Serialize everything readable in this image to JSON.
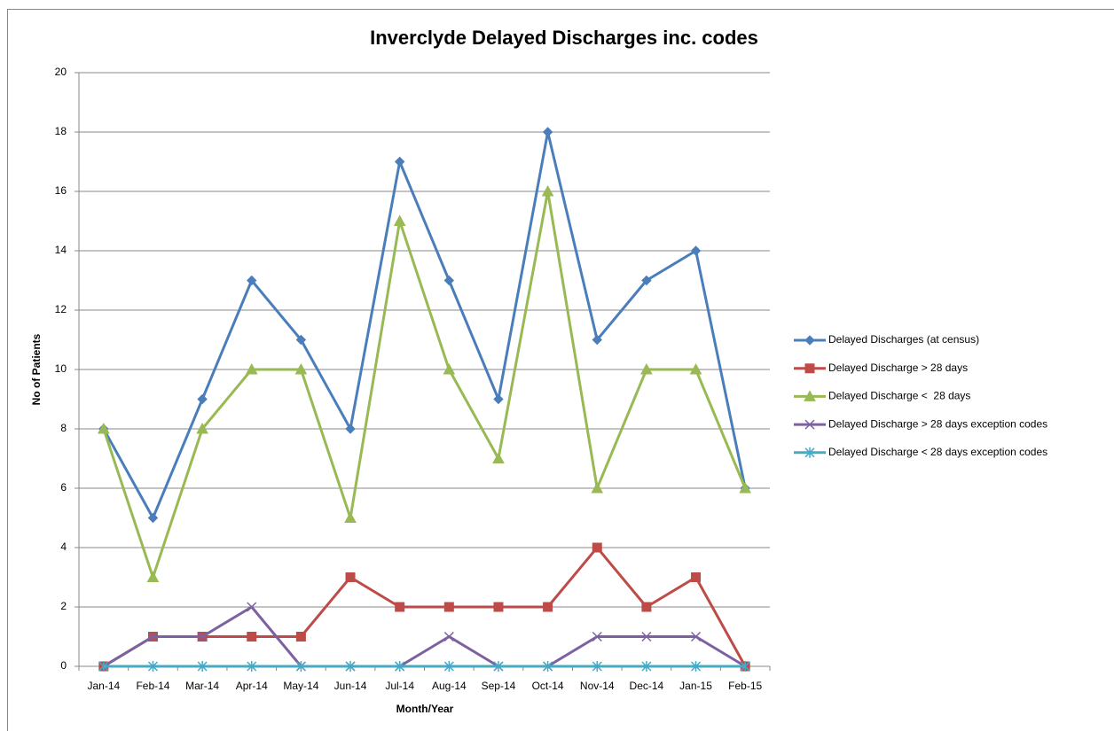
{
  "chart_data": {
    "type": "line",
    "title": "Inverclyde Delayed Discharges inc. codes",
    "x_label": "Month/Year",
    "y_label": "No of Patients",
    "categories": [
      "Jan-14",
      "Feb-14",
      "Mar-14",
      "Apr-14",
      "May-14",
      "Jun-14",
      "Jul-14",
      "Aug-14",
      "Sep-14",
      "Oct-14",
      "Nov-14",
      "Dec-14",
      "Jan-15",
      "Feb-15"
    ],
    "series": [
      {
        "name": "Delayed Discharges (at census)",
        "color": "#4a7ebb",
        "marker": "diamond",
        "values": [
          8,
          5,
          9,
          13,
          11,
          8,
          17,
          13,
          9,
          18,
          11,
          13,
          14,
          6
        ]
      },
      {
        "name": "Delayed Discharge > 28 days",
        "color": "#be4b48",
        "marker": "square",
        "values": [
          0,
          1,
          1,
          1,
          1,
          3,
          2,
          2,
          2,
          2,
          4,
          2,
          3,
          0
        ]
      },
      {
        "name": "Delayed Discharge <  28 days",
        "color": "#98b954",
        "marker": "triangle",
        "values": [
          8,
          3,
          8,
          10,
          10,
          5,
          15,
          10,
          7,
          16,
          6,
          10,
          10,
          6
        ]
      },
      {
        "name": "Delayed Discharge > 28 days exception codes",
        "color": "#7d60a0",
        "marker": "x",
        "values": [
          0,
          1,
          1,
          2,
          0,
          0,
          0,
          1,
          0,
          0,
          1,
          1,
          1,
          0
        ]
      },
      {
        "name": "Delayed Discharge < 28 days exception codes",
        "color": "#46aac5",
        "marker": "star",
        "values": [
          0,
          0,
          0,
          0,
          0,
          0,
          0,
          0,
          0,
          0,
          0,
          0,
          0,
          0
        ]
      }
    ],
    "ylim": [
      0,
      20
    ],
    "yticks": [
      0,
      2,
      4,
      6,
      8,
      10,
      12,
      14,
      16,
      18,
      20
    ],
    "grid": true,
    "legend": "right"
  }
}
